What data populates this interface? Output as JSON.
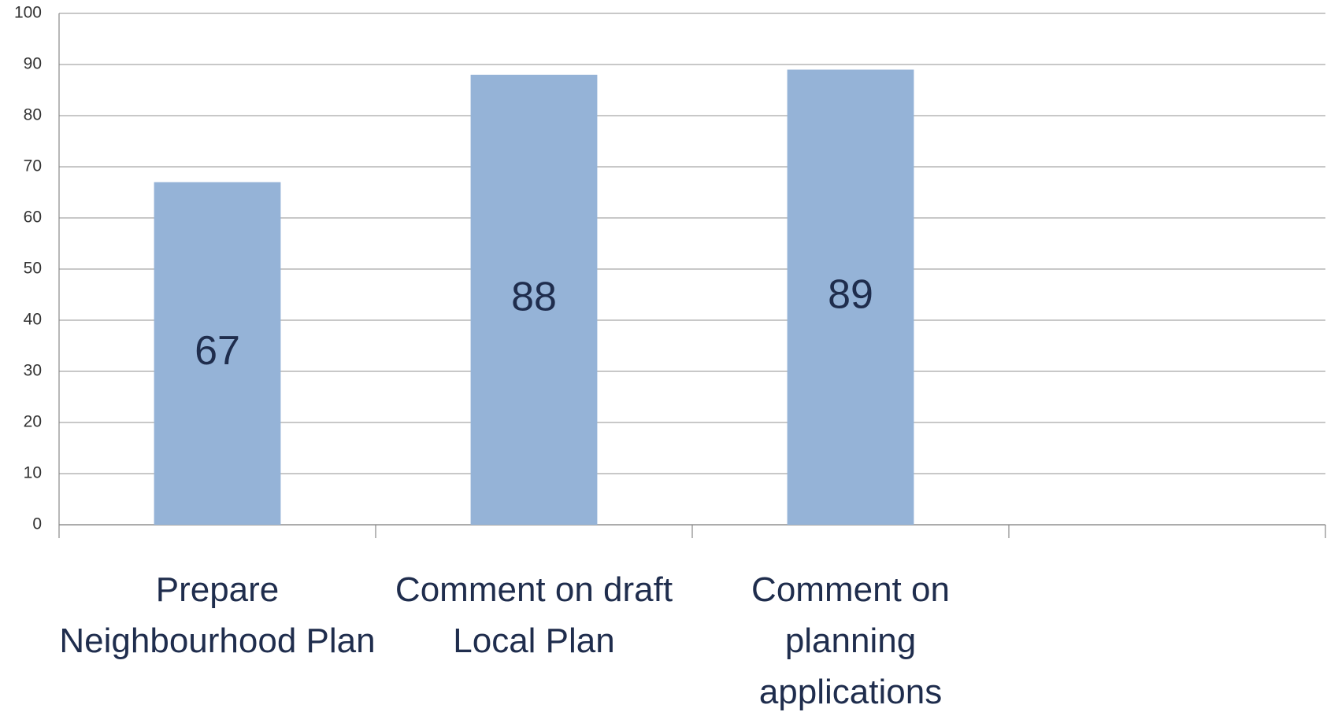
{
  "chart_data": {
    "type": "bar",
    "categories": [
      "Prepare Neighbourhood Plan",
      "Comment on draft Local Plan",
      "Comment on planning applications",
      null
    ],
    "values": [
      67,
      88,
      89,
      null
    ],
    "color": "#95b3d7",
    "ylim": [
      0,
      100
    ],
    "yticks": [
      0,
      10,
      20,
      30,
      40,
      50,
      60,
      70,
      80,
      90,
      100
    ],
    "grid": true
  }
}
